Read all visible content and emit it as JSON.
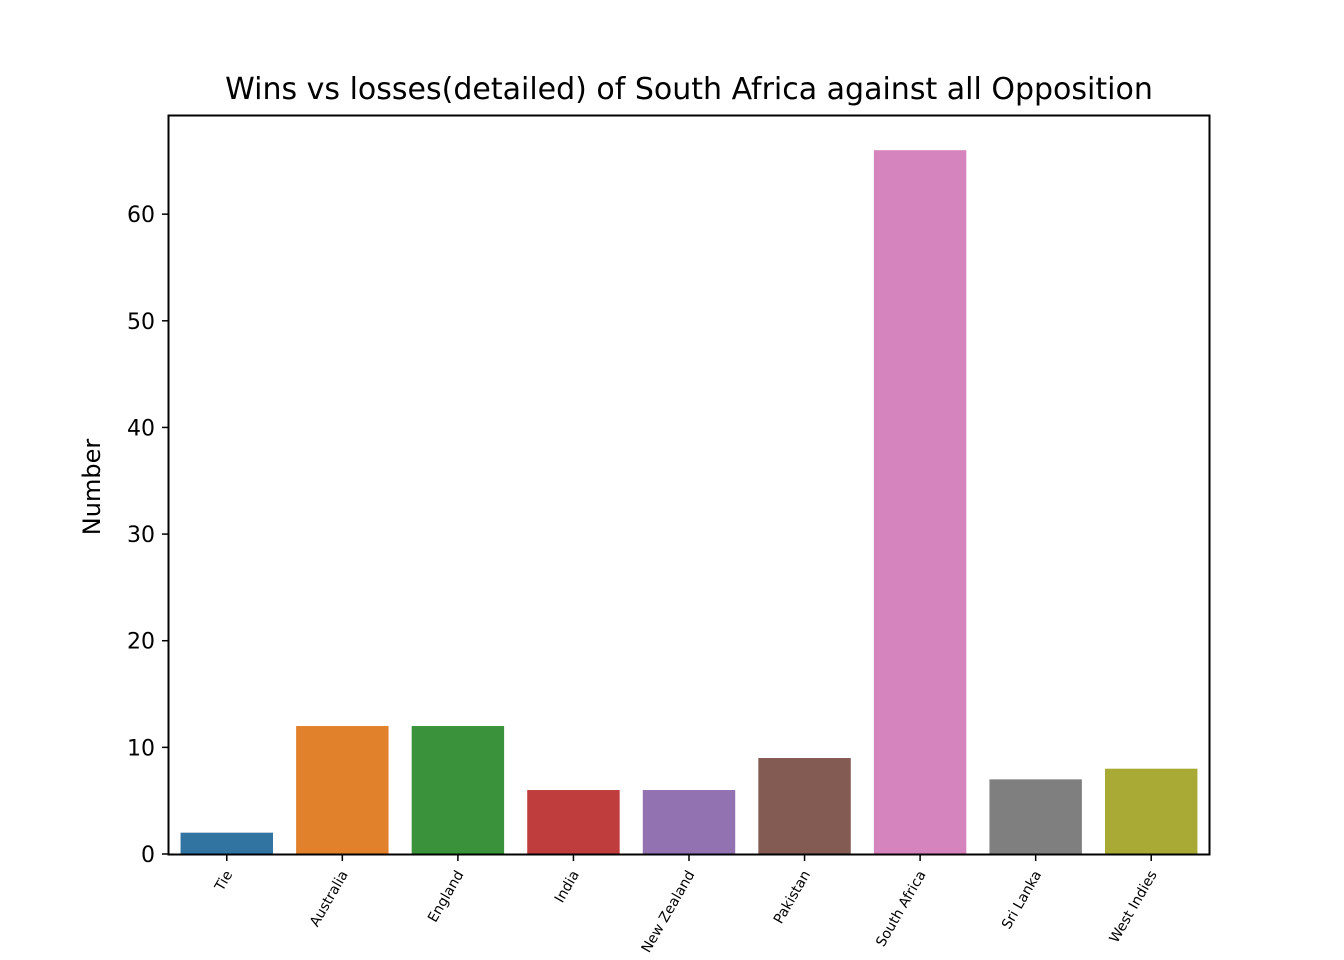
{
  "chart_data": {
    "type": "bar",
    "title": "Wins vs losses(detailed) of South Africa against all Opposition",
    "xlabel": "",
    "ylabel": "Number",
    "categories": [
      "Tie",
      "Australia",
      "England",
      "India",
      "New Zealand",
      "Pakistan",
      "South Africa",
      "Sri Lanka",
      "West Indies"
    ],
    "values": [
      2,
      12,
      12,
      6,
      6,
      9,
      66,
      7,
      8
    ],
    "colors": [
      "#3274a1",
      "#e1812c",
      "#3a923a",
      "#c03d3e",
      "#9372b2",
      "#845b53",
      "#d684bd",
      "#7f7f7f",
      "#a9aa35"
    ],
    "ylim": [
      0,
      69.3
    ],
    "yticks": [
      0,
      10,
      20,
      30,
      40,
      50,
      60
    ],
    "grid": false,
    "legend": "none"
  }
}
